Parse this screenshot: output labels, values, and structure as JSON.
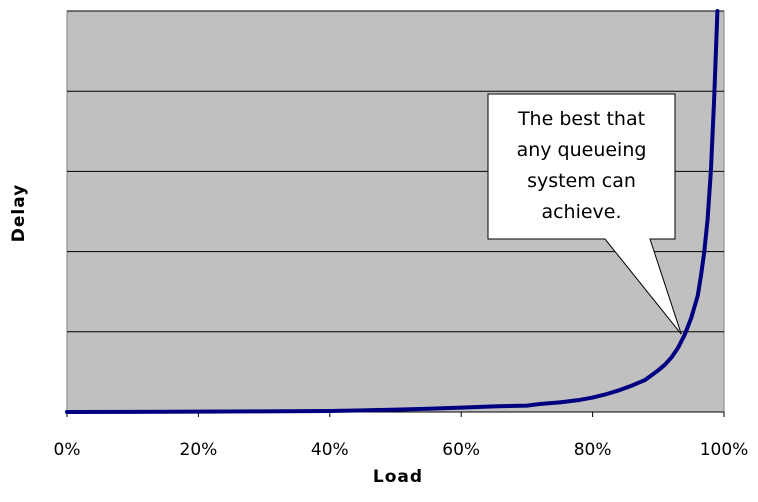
{
  "chart_data": {
    "type": "line",
    "title": "",
    "xlabel": "Load",
    "ylabel": "Delay",
    "xlim": [
      0,
      100
    ],
    "ylim": [
      0,
      5
    ],
    "x_tick_values": [
      0,
      20,
      40,
      60,
      80,
      100
    ],
    "x_tick_labels": [
      "0%",
      "20%",
      "40%",
      "60%",
      "80%",
      "100%"
    ],
    "y_tick_labels": [],
    "grid": "horizontal",
    "legend": "none",
    "plot_background": "#c0c0c0",
    "series": [
      {
        "color": "#000080",
        "x": [
          0,
          10,
          20,
          30,
          40,
          45,
          50,
          55,
          60,
          65,
          70,
          72,
          75,
          78,
          80,
          82,
          84,
          86,
          88,
          89,
          90,
          91,
          92,
          93,
          94,
          95,
          96,
          96.5,
          97,
          97.5,
          98,
          98.5,
          99
        ],
        "y": [
          0,
          0.001,
          0.005,
          0.008,
          0.013,
          0.02,
          0.03,
          0.04,
          0.055,
          0.07,
          0.08,
          0.1,
          0.12,
          0.15,
          0.18,
          0.22,
          0.27,
          0.33,
          0.4,
          0.46,
          0.52,
          0.59,
          0.68,
          0.8,
          0.96,
          1.17,
          1.45,
          1.7,
          2.0,
          2.4,
          3.0,
          3.9,
          5.0
        ]
      }
    ],
    "annotations": [
      {
        "lines": [
          "The best that",
          "any queueing",
          "system can",
          "achieve."
        ],
        "pointer_x": 93.5,
        "pointer_y": 0.97
      }
    ]
  }
}
